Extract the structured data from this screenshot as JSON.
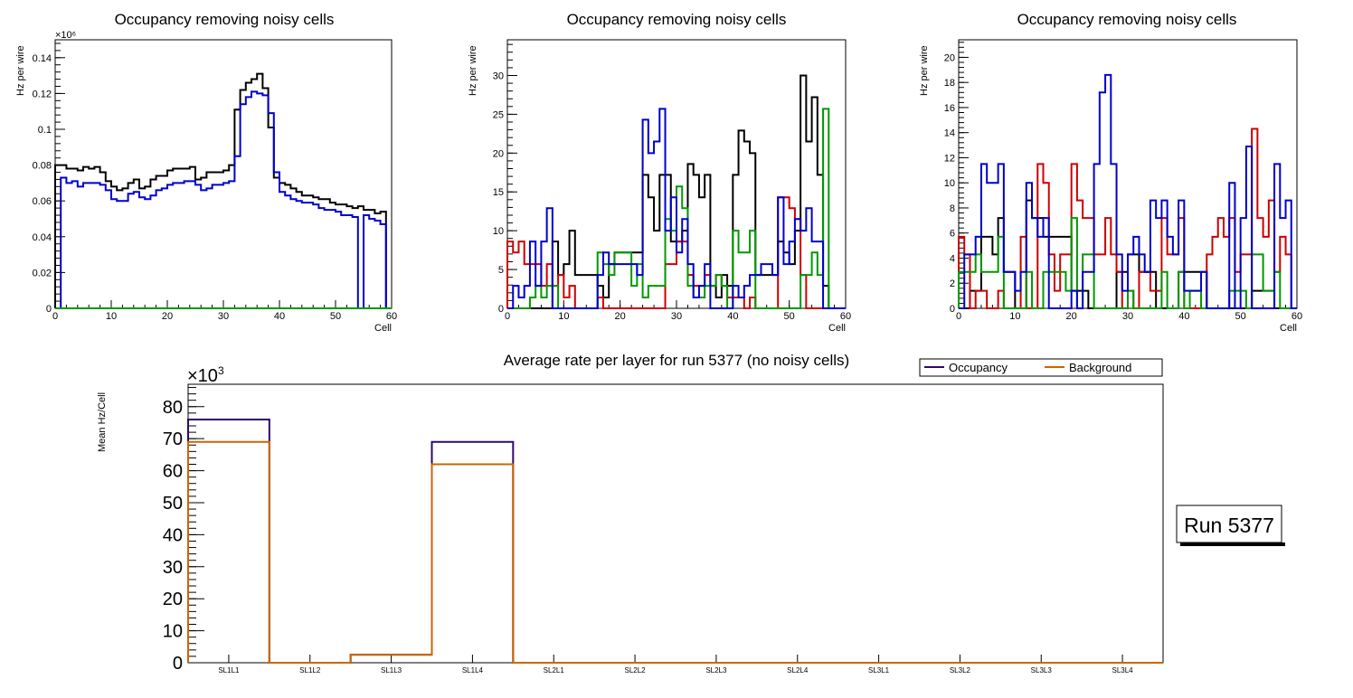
{
  "colors": {
    "black": "#000000",
    "blue": "#0000cc",
    "red": "#cc0000",
    "green": "#009900",
    "occupancy": "#2e0a66",
    "background": "#cc6600"
  },
  "chart_data": [
    {
      "type": "line",
      "style": "step-histogram",
      "title": "Occupancy removing noisy cells",
      "xlabel": "Cell",
      "ylabel": "Hz per wire",
      "y_exponent_label": "×10⁶",
      "xlim": [
        0,
        60
      ],
      "ylim": [
        0,
        0.15
      ],
      "xticks": [
        0,
        10,
        20,
        30,
        40,
        50,
        60
      ],
      "yticks": [
        0,
        0.02,
        0.04,
        0.06,
        0.08,
        0.1,
        0.12,
        0.14
      ],
      "ytick_labels": [
        "0",
        "0.02",
        "0.04",
        "0.06",
        "0.08",
        "0.1",
        "0.12",
        "0.14"
      ],
      "series": [
        {
          "name": "black",
          "color": "#000000",
          "values": [
            0.08,
            0.08,
            0.078,
            0.078,
            0.077,
            0.079,
            0.078,
            0.079,
            0.076,
            0.071,
            0.068,
            0.066,
            0.067,
            0.07,
            0.072,
            0.067,
            0.068,
            0.072,
            0.074,
            0.074,
            0.077,
            0.078,
            0.078,
            0.078,
            0.079,
            0.072,
            0.073,
            0.076,
            0.076,
            0.076,
            0.077,
            0.08,
            0.111,
            0.122,
            0.126,
            0.128,
            0.131,
            0.123,
            0.101,
            0.073,
            0.07,
            0.069,
            0.067,
            0.065,
            0.063,
            0.063,
            0.062,
            0.061,
            0.061,
            0.059,
            0.058,
            0.058,
            0.057,
            0.056,
            0.057,
            0.055,
            0.055,
            0.053,
            0.054,
            0.0
          ]
        },
        {
          "name": "blue",
          "color": "#0000cc",
          "values": [
            0.0,
            0.073,
            0.07,
            0.071,
            0.068,
            0.07,
            0.07,
            0.07,
            0.069,
            0.066,
            0.061,
            0.06,
            0.06,
            0.064,
            0.065,
            0.062,
            0.061,
            0.063,
            0.066,
            0.067,
            0.069,
            0.07,
            0.07,
            0.071,
            0.071,
            0.069,
            0.066,
            0.067,
            0.069,
            0.069,
            0.07,
            0.071,
            0.085,
            0.114,
            0.118,
            0.121,
            0.12,
            0.119,
            0.109,
            0.076,
            0.065,
            0.063,
            0.061,
            0.06,
            0.059,
            0.059,
            0.058,
            0.056,
            0.055,
            0.055,
            0.054,
            0.052,
            0.052,
            0.051,
            0.0,
            0.052,
            0.05,
            0.049,
            0.047,
            0.0
          ]
        },
        {
          "name": "green",
          "color": "#009900",
          "values": [
            0,
            0,
            0,
            0,
            0,
            0,
            0,
            0,
            0,
            0,
            0,
            0,
            0,
            0,
            0,
            0,
            0,
            0,
            0,
            0,
            0,
            0,
            0,
            0,
            0,
            0,
            0,
            0,
            0,
            0,
            0,
            0,
            0,
            0,
            0,
            0,
            0,
            0,
            0,
            0,
            0,
            0,
            0,
            0,
            0,
            0,
            0,
            0,
            0,
            0,
            0,
            0,
            0,
            0,
            0,
            0,
            0,
            0,
            0,
            0
          ]
        }
      ]
    },
    {
      "type": "line",
      "style": "step-histogram",
      "title": "Occupancy removing noisy cells",
      "xlabel": "Cell",
      "ylabel": "Hz per wire",
      "xlim": [
        0,
        60
      ],
      "ylim": [
        0,
        34.6
      ],
      "xticks": [
        0,
        10,
        20,
        30,
        40,
        50,
        60
      ],
      "yticks": [
        0,
        5,
        10,
        15,
        20,
        25,
        30
      ],
      "ytick_labels": [
        "0",
        "5",
        "10",
        "15",
        "20",
        "25",
        "30"
      ],
      "series": [
        {
          "name": "black",
          "color": "#000000",
          "values": [
            0,
            0,
            0,
            0,
            0,
            0,
            0,
            0,
            8.6,
            4.3,
            5.7,
            10,
            4.3,
            4.3,
            4.3,
            4.3,
            2.9,
            1.4,
            5.7,
            7.2,
            7.2,
            7.2,
            7.2,
            7.2,
            17.2,
            14.3,
            10,
            17.2,
            17.2,
            8.6,
            8.6,
            10,
            18.6,
            17.2,
            14.3,
            17.2,
            2.9,
            1.4,
            4.3,
            2.9,
            17.2,
            22.9,
            21.5,
            20,
            4.3,
            4.3,
            4.3,
            4.3,
            8.6,
            7.2,
            5.7,
            10,
            30,
            21.5,
            27.2,
            17.2,
            2.9,
            0,
            0,
            0
          ]
        },
        {
          "name": "red",
          "color": "#cc0000",
          "values": [
            8.6,
            7.2,
            8.6,
            5.7,
            5.7,
            5.7,
            2.9,
            5.7,
            2.9,
            4.3,
            1.4,
            2.9,
            0,
            0,
            0,
            0,
            1.4,
            0,
            0,
            0,
            0,
            0,
            0,
            0,
            0,
            0,
            0,
            0,
            5.7,
            5.7,
            8.6,
            8.6,
            4.3,
            2.9,
            2.9,
            4.3,
            2.9,
            4.3,
            2.9,
            1.4,
            1.4,
            1.4,
            0,
            1.4,
            0,
            0,
            0,
            0,
            14.3,
            14.3,
            12.9,
            11.5,
            4.3,
            0,
            0,
            0,
            0,
            0,
            0,
            0
          ]
        },
        {
          "name": "green",
          "color": "#009900",
          "values": [
            0,
            0,
            0,
            0,
            1.4,
            2.9,
            1.4,
            2.9,
            2.9,
            0,
            0,
            0,
            0,
            0,
            0,
            0,
            7.2,
            5.7,
            4.3,
            7.2,
            7.2,
            7.2,
            2.9,
            5.7,
            1.4,
            2.9,
            2.9,
            2.9,
            11.5,
            10,
            15.7,
            12.9,
            2.9,
            1.4,
            1.4,
            2.9,
            2.9,
            4.3,
            2.9,
            0,
            10,
            7.2,
            7.2,
            10,
            0,
            0,
            0,
            0,
            0,
            0,
            0,
            0,
            4.3,
            4.3,
            7.2,
            4.3,
            25.7,
            0,
            0,
            0
          ]
        },
        {
          "name": "blue",
          "color": "#0000cc",
          "values": [
            0,
            2.9,
            1.4,
            2.9,
            8.6,
            2.9,
            8.6,
            12.9,
            0,
            0,
            0,
            0,
            0,
            0,
            0,
            0,
            4.3,
            7.2,
            5.7,
            5.7,
            5.7,
            5.7,
            5.7,
            4.3,
            24.3,
            20,
            21.5,
            25.7,
            10,
            14.3,
            7.2,
            11.5,
            5.7,
            1.4,
            2.9,
            5.7,
            0,
            0,
            0,
            0,
            2.9,
            1.4,
            2.9,
            4.3,
            4.3,
            5.7,
            5.7,
            4.3,
            14.3,
            5.7,
            8.6,
            11.5,
            10,
            12.9,
            8.6,
            8.6,
            0,
            0,
            0,
            0
          ]
        }
      ]
    },
    {
      "type": "line",
      "style": "step-histogram",
      "title": "Occupancy removing noisy cells",
      "xlabel": "Cell",
      "ylabel": "Hz per wire",
      "xlim": [
        0,
        60
      ],
      "ylim": [
        0,
        21.4
      ],
      "xticks": [
        0,
        10,
        20,
        30,
        40,
        50,
        60
      ],
      "yticks": [
        0,
        2,
        4,
        6,
        8,
        10,
        12,
        14,
        16,
        18,
        20
      ],
      "ytick_labels": [
        "0",
        "2",
        "4",
        "6",
        "8",
        "10",
        "12",
        "14",
        "16",
        "18",
        "20"
      ],
      "series": [
        {
          "name": "black",
          "color": "#000000",
          "values": [
            0,
            0,
            1.4,
            1.4,
            5.7,
            5.7,
            4.3,
            7.2,
            2.9,
            2.9,
            0,
            0,
            8.6,
            7.2,
            7.2,
            5.7,
            5.7,
            5.7,
            5.7,
            5.7,
            1.4,
            1.4,
            1.4,
            0,
            0,
            0,
            0,
            0,
            2.9,
            2.9,
            4.3,
            4.3,
            2.9,
            2.9,
            2.9,
            0,
            0,
            0,
            0,
            2.9,
            2.9,
            2.9,
            2.9,
            2.9,
            0,
            0,
            0,
            0,
            0,
            0,
            0,
            0,
            1.4,
            1.4,
            1.4,
            1.4,
            0,
            0,
            0,
            0
          ]
        },
        {
          "name": "red",
          "color": "#cc0000",
          "values": [
            5.7,
            4.3,
            0,
            1.4,
            1.4,
            0,
            0,
            1.4,
            0,
            0,
            0,
            5.7,
            0,
            0,
            11.5,
            10,
            4.3,
            1.4,
            4.3,
            4.3,
            11.5,
            8.6,
            7.2,
            7.2,
            4.3,
            4.3,
            7.2,
            4.3,
            2.9,
            0,
            1.4,
            0,
            2.9,
            2.9,
            1.4,
            1.4,
            7.2,
            4.3,
            4.3,
            7.2,
            0,
            0,
            0,
            0,
            4.3,
            5.7,
            7.2,
            5.7,
            7.2,
            2.9,
            4.3,
            4.3,
            14.3,
            7.2,
            5.7,
            8.6,
            2.9,
            5.7,
            4.3,
            0
          ]
        },
        {
          "name": "green",
          "color": "#009900",
          "values": [
            2.9,
            2.9,
            2.9,
            4.3,
            2.9,
            2.9,
            2.9,
            5.7,
            0,
            0,
            0,
            0,
            2.9,
            0,
            0,
            2.9,
            2.9,
            2.9,
            2.9,
            1.4,
            7.2,
            0,
            4.3,
            4.3,
            0,
            0,
            0,
            0,
            0,
            0,
            1.4,
            0,
            0,
            0,
            0,
            0,
            2.9,
            0,
            0,
            2.9,
            0,
            1.4,
            1.4,
            0,
            0,
            0,
            0,
            0,
            1.4,
            1.4,
            1.4,
            0,
            4.3,
            4.3,
            1.4,
            1.4,
            2.9,
            0,
            0,
            0
          ]
        },
        {
          "name": "blue",
          "color": "#0000cc",
          "values": [
            0,
            4.3,
            4.3,
            5.7,
            11.5,
            10,
            10,
            11.5,
            2.9,
            2.9,
            1.4,
            2.9,
            10,
            7.2,
            5.7,
            7.2,
            0,
            0,
            0,
            0,
            1.4,
            0,
            2.9,
            2.9,
            11.5,
            17.2,
            18.6,
            11.5,
            4.3,
            1.4,
            4.3,
            5.7,
            4.3,
            2.9,
            8.6,
            7.2,
            8.6,
            5.7,
            4.3,
            8.6,
            1.4,
            1.4,
            1.4,
            2.9,
            0,
            0,
            0,
            0,
            10,
            0,
            7.2,
            12.9,
            0,
            0,
            0,
            0,
            11.5,
            7.2,
            8.6,
            0
          ]
        }
      ]
    },
    {
      "type": "line",
      "style": "step-histogram",
      "title": "Average rate per layer for run 5377 (no noisy cells)",
      "xlabel": "",
      "ylabel": "Mean Hz/Cell",
      "y_exponent_label": "×10",
      "y_exponent_power": "3",
      "categories": [
        "SL1L1",
        "SL1L2",
        "SL1L3",
        "SL1L4",
        "SL2L1",
        "SL2L2",
        "SL2L3",
        "SL2L4",
        "SL3L1",
        "SL3L2",
        "SL3L3",
        "SL3L4"
      ],
      "ylim": [
        0,
        87
      ],
      "yticks": [
        0,
        10,
        20,
        30,
        40,
        50,
        60,
        70,
        80
      ],
      "ytick_labels": [
        "0",
        "10",
        "20",
        "30",
        "40",
        "50",
        "60",
        "70",
        "80"
      ],
      "legend": {
        "position": "top-right",
        "entries": [
          "Occupancy",
          "Background"
        ]
      },
      "series": [
        {
          "name": "Occupancy",
          "color": "#2e0a66",
          "values": [
            76,
            0,
            2.5,
            69,
            0,
            0,
            0,
            0,
            0,
            0,
            0,
            0
          ]
        },
        {
          "name": "Background",
          "color": "#cc6600",
          "values": [
            69,
            0,
            2.5,
            62,
            0,
            0,
            0,
            0,
            0,
            0,
            0,
            0
          ]
        }
      ]
    }
  ],
  "run_label": "Run 5377"
}
